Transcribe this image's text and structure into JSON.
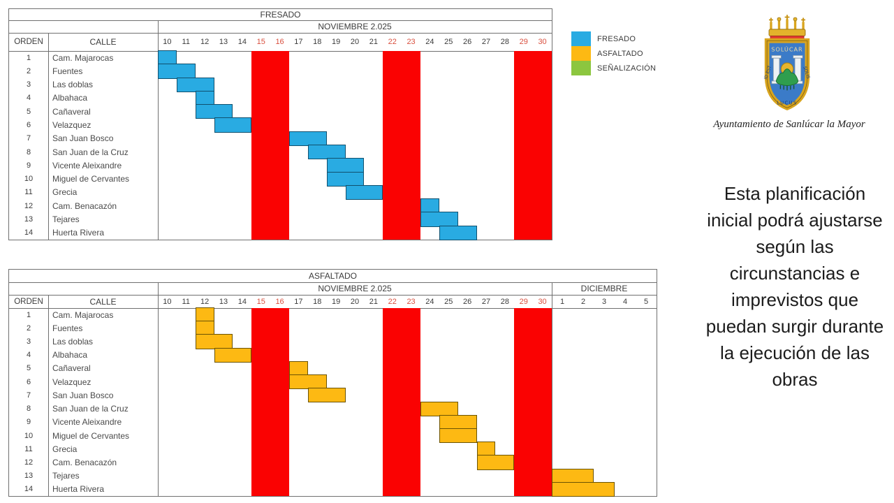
{
  "legend": {
    "items": [
      {
        "label": "FRESADO",
        "color": "#29ABE2"
      },
      {
        "label": "ASFALTADO",
        "color": "#FDB913"
      },
      {
        "label": "SEÑALIZACIÓN",
        "color": "#8CC63F"
      }
    ]
  },
  "logo": {
    "caption": "Ayuntamiento de Sanlúcar la Mayor",
    "motto_top": "SOLÚCAR",
    "motto_left": "ID EST",
    "motto_right": "SOLIS",
    "motto_bottom": "LUCUS"
  },
  "note": {
    "lines": [
      "Esta planificación",
      "inicial podrá ajustarse",
      "según las",
      "circunstancias e",
      "imprevistos que",
      "puedan surgir durante",
      "la ejecución de las",
      "obras"
    ]
  },
  "chart_data": [
    {
      "type": "table",
      "subtype": "gantt",
      "title": "FRESADO",
      "orden_header": "ORDEN",
      "calle_header": "CALLE",
      "months": [
        {
          "label": "NOVIEMBRE 2.025",
          "prefix": "N",
          "days": [
            10,
            11,
            12,
            13,
            14,
            15,
            16,
            17,
            18,
            19,
            20,
            21,
            22,
            23,
            24,
            25,
            26,
            27,
            28,
            29,
            30
          ]
        }
      ],
      "weekend_days": [
        "N15",
        "N16",
        "N22",
        "N23",
        "N29",
        "N30"
      ],
      "weekend_fill": "#FA0202",
      "weekend_text_color": "#D9503F",
      "bar_color": "#29ABE2",
      "bar_border": "#10506E",
      "rows": [
        {
          "orden": "1",
          "calle": "Cam. Majarocas",
          "start": "N10",
          "end": "N10"
        },
        {
          "orden": "2",
          "calle": "Fuentes",
          "start": "N10",
          "end": "N11"
        },
        {
          "orden": "3",
          "calle": "Las doblas",
          "start": "N11",
          "end": "N12"
        },
        {
          "orden": "4",
          "calle": "Albahaca",
          "start": "N12",
          "end": "N12"
        },
        {
          "orden": "5",
          "calle": "Cañaveral",
          "start": "N12",
          "end": "N13"
        },
        {
          "orden": "6",
          "calle": "Velazquez",
          "start": "N13",
          "end": "N14"
        },
        {
          "orden": "7",
          "calle": "San Juan Bosco",
          "start": "N17",
          "end": "N18"
        },
        {
          "orden": "8",
          "calle": "San Juan de la Cruz",
          "start": "N18",
          "end": "N19"
        },
        {
          "orden": "9",
          "calle": "Vicente Aleixandre",
          "start": "N19",
          "end": "N20"
        },
        {
          "orden": "10",
          "calle": "Miguel de Cervantes",
          "start": "N19",
          "end": "N20"
        },
        {
          "orden": "11",
          "calle": "Grecia",
          "start": "N20",
          "end": "N21"
        },
        {
          "orden": "12",
          "calle": "Cam. Benacazón",
          "start": "N24",
          "end": "N24"
        },
        {
          "orden": "13",
          "calle": "Tejares",
          "start": "N24",
          "end": "N25"
        },
        {
          "orden": "14",
          "calle": "Huerta Rivera",
          "start": "N25",
          "end": "N26"
        }
      ]
    },
    {
      "type": "table",
      "subtype": "gantt",
      "title": "ASFALTADO",
      "orden_header": "ORDEN",
      "calle_header": "CALLE",
      "months": [
        {
          "label": "NOVIEMBRE 2.025",
          "prefix": "N",
          "days": [
            10,
            11,
            12,
            13,
            14,
            15,
            16,
            17,
            18,
            19,
            20,
            21,
            22,
            23,
            24,
            25,
            26,
            27,
            28,
            29,
            30
          ]
        },
        {
          "label": "DICIEMBRE",
          "prefix": "D",
          "days": [
            1,
            2,
            3,
            4,
            5
          ]
        }
      ],
      "weekend_days": [
        "N15",
        "N16",
        "N22",
        "N23",
        "N29",
        "N30"
      ],
      "weekend_fill": "#FA0202",
      "weekend_text_color": "#D9503F",
      "bar_color": "#FDB913",
      "bar_border": "#6B5303",
      "rows": [
        {
          "orden": "1",
          "calle": "Cam. Majarocas",
          "start": "N12",
          "end": "N12"
        },
        {
          "orden": "2",
          "calle": "Fuentes",
          "start": "N12",
          "end": "N12"
        },
        {
          "orden": "3",
          "calle": "Las doblas",
          "start": "N12",
          "end": "N13"
        },
        {
          "orden": "4",
          "calle": "Albahaca",
          "start": "N13",
          "end": "N14"
        },
        {
          "orden": "5",
          "calle": "Cañaveral",
          "start": "N17",
          "end": "N17"
        },
        {
          "orden": "6",
          "calle": "Velazquez",
          "start": "N17",
          "end": "N18"
        },
        {
          "orden": "7",
          "calle": "San Juan Bosco",
          "start": "N18",
          "end": "N19"
        },
        {
          "orden": "8",
          "calle": "San Juan de la Cruz",
          "start": "N24",
          "end": "N25"
        },
        {
          "orden": "9",
          "calle": "Vicente Aleixandre",
          "start": "N25",
          "end": "N26"
        },
        {
          "orden": "10",
          "calle": "Miguel de Cervantes",
          "start": "N25",
          "end": "N26"
        },
        {
          "orden": "11",
          "calle": "Grecia",
          "start": "N27",
          "end": "N27"
        },
        {
          "orden": "12",
          "calle": "Cam. Benacazón",
          "start": "N27",
          "end": "N28"
        },
        {
          "orden": "13",
          "calle": "Tejares",
          "start": "D1",
          "end": "D2"
        },
        {
          "orden": "14",
          "calle": "Huerta Rivera",
          "start": "D1",
          "end": "D3"
        }
      ]
    }
  ]
}
